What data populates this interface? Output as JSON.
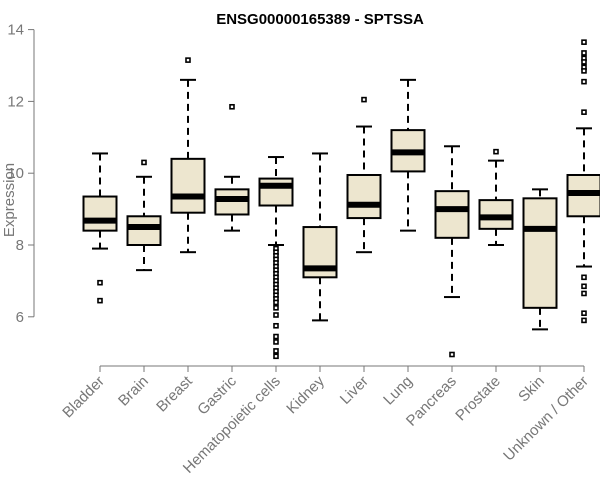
{
  "chart_data": {
    "type": "boxplot",
    "title": "ENSG00000165389 - SPTSSA",
    "xlabel": "",
    "ylabel": "Expression",
    "ylim": [
      4.5,
      14.3
    ],
    "yticks": [
      6,
      8,
      10,
      12,
      14
    ],
    "categories": [
      "Bladder",
      "Brain",
      "Breast",
      "Gastric",
      "Hematopoietic cells",
      "Kidney",
      "Liver",
      "Lung",
      "Pancreas",
      "Prostate",
      "Skin",
      "Unknown / Other"
    ],
    "boxes": [
      {
        "name": "Bladder",
        "whislo": 7.9,
        "q1": 8.4,
        "med": 8.68,
        "q3": 9.35,
        "whishi": 10.55,
        "fliers": [
          6.95,
          6.45
        ]
      },
      {
        "name": "Brain",
        "whislo": 7.3,
        "q1": 8.0,
        "med": 8.5,
        "q3": 8.8,
        "whishi": 9.9,
        "fliers": [
          10.3
        ]
      },
      {
        "name": "Breast",
        "whislo": 7.8,
        "q1": 8.9,
        "med": 9.35,
        "q3": 10.4,
        "whishi": 12.6,
        "fliers": [
          13.15
        ]
      },
      {
        "name": "Gastric",
        "whislo": 8.4,
        "q1": 8.85,
        "med": 9.28,
        "q3": 9.55,
        "whishi": 9.9,
        "fliers": [
          11.85
        ]
      },
      {
        "name": "Hematopoietic cells",
        "whislo": 8.0,
        "q1": 9.1,
        "med": 9.65,
        "q3": 9.85,
        "whishi": 10.45,
        "fliers": [
          7.9,
          7.8,
          7.7,
          7.6,
          7.5,
          7.4,
          7.3,
          7.2,
          7.1,
          7.0,
          6.9,
          6.8,
          6.7,
          6.6,
          6.5,
          6.4,
          6.25,
          6.05,
          5.75,
          5.45,
          5.3,
          5.05,
          4.9
        ]
      },
      {
        "name": "Kidney",
        "whislo": 5.9,
        "q1": 7.1,
        "med": 7.35,
        "q3": 8.5,
        "whishi": 10.55,
        "fliers": []
      },
      {
        "name": "Liver",
        "whislo": 7.8,
        "q1": 8.75,
        "med": 9.12,
        "q3": 9.95,
        "whishi": 11.3,
        "fliers": [
          12.05
        ]
      },
      {
        "name": "Lung",
        "whislo": 8.4,
        "q1": 10.05,
        "med": 10.58,
        "q3": 11.2,
        "whishi": 12.6,
        "fliers": []
      },
      {
        "name": "Pancreas",
        "whislo": 6.55,
        "q1": 8.2,
        "med": 9.0,
        "q3": 9.5,
        "whishi": 10.75,
        "fliers": [
          4.95
        ]
      },
      {
        "name": "Prostate",
        "whislo": 8.0,
        "q1": 8.45,
        "med": 8.77,
        "q3": 9.25,
        "whishi": 10.35,
        "fliers": [
          10.6
        ]
      },
      {
        "name": "Skin",
        "whislo": 5.65,
        "q1": 6.25,
        "med": 8.45,
        "q3": 9.3,
        "whishi": 9.55,
        "fliers": []
      },
      {
        "name": "Unknown / Other",
        "whislo": 7.4,
        "q1": 8.8,
        "med": 9.45,
        "q3": 9.95,
        "whishi": 11.25,
        "fliers": [
          13.65,
          13.35,
          13.2,
          13.1,
          12.95,
          12.85,
          12.55,
          11.7,
          7.1,
          6.85,
          6.65,
          6.1,
          5.9
        ]
      }
    ]
  }
}
